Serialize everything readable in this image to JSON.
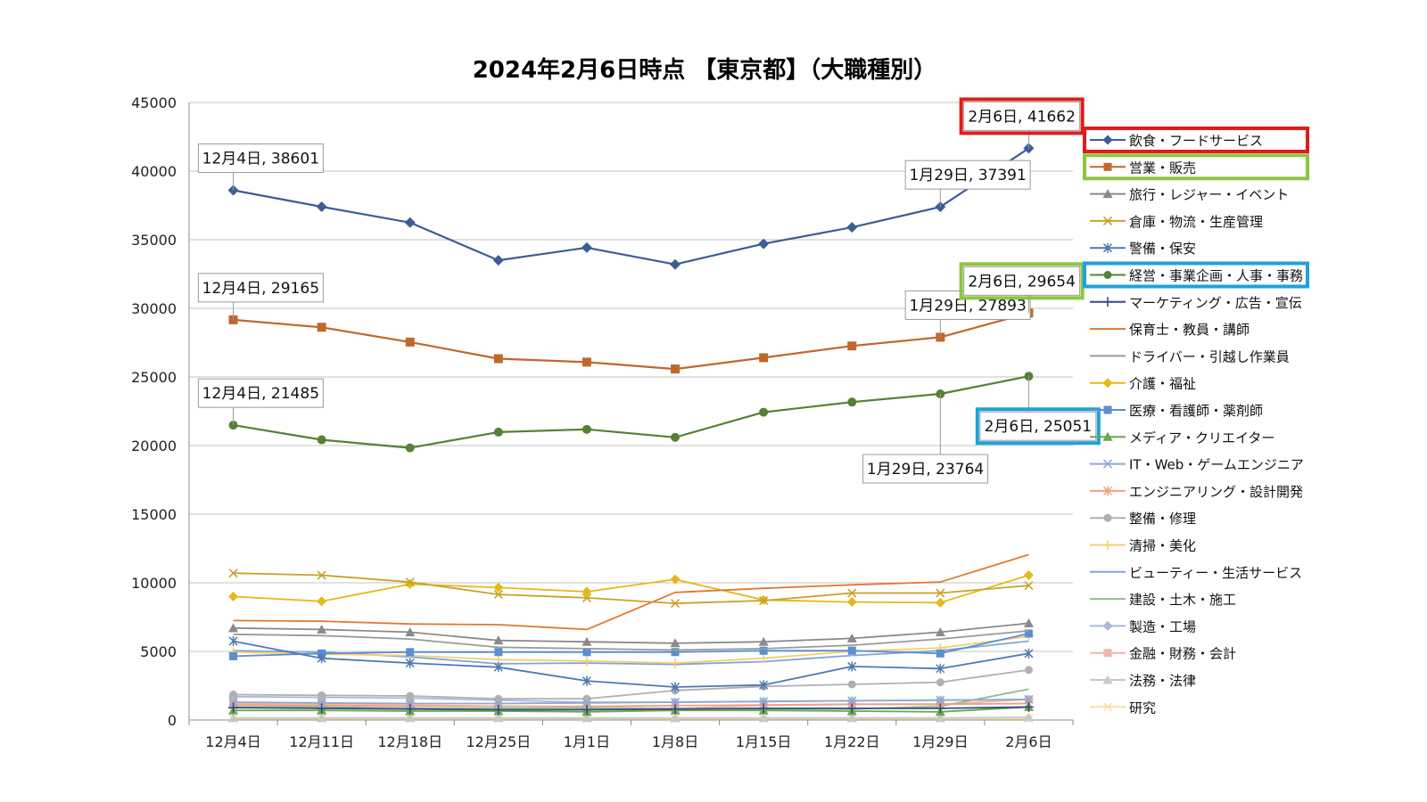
{
  "chart_data": {
    "type": "line",
    "title": "2024年2月6日時点 【東京都】（大職種別）",
    "xlabel": "",
    "ylabel": "",
    "ylim": [
      0,
      45000
    ],
    "yticks": [
      0,
      5000,
      10000,
      15000,
      20000,
      25000,
      30000,
      35000,
      40000,
      45000
    ],
    "grid": "horizontal",
    "legend_position": "right",
    "categories": [
      "12月4日",
      "12月11日",
      "12月18日",
      "12月25日",
      "1月1日",
      "1月8日",
      "1月15日",
      "1月22日",
      "1月29日",
      "2月6日"
    ],
    "series": [
      {
        "name": "飲食・フードサービス",
        "color": "#3c5d96",
        "marker": "diamond",
        "values": [
          38601,
          37400,
          36250,
          33500,
          34420,
          33200,
          34700,
          35900,
          37391,
          41662
        ]
      },
      {
        "name": "営業・販売",
        "color": "#c0672d",
        "marker": "square",
        "values": [
          29165,
          28620,
          27540,
          26330,
          26080,
          25580,
          26400,
          27260,
          27893,
          29654
        ]
      },
      {
        "name": "旅行・レジャー・イベント",
        "color": "#8a8a8a",
        "marker": "triangle",
        "values": [
          6700,
          6600,
          6400,
          5800,
          5700,
          5600,
          5700,
          5950,
          6400,
          7050
        ]
      },
      {
        "name": "倉庫・物流・生産管理",
        "color": "#c9a227",
        "marker": "x",
        "values": [
          10700,
          10550,
          10050,
          9150,
          8900,
          8500,
          8700,
          9250,
          9250,
          9800
        ]
      },
      {
        "name": "警備・保安",
        "color": "#4d7ab3",
        "marker": "asterisk",
        "values": [
          5750,
          4500,
          4150,
          3850,
          2850,
          2400,
          2550,
          3900,
          3750,
          4850
        ]
      },
      {
        "name": "経営・事業企画・人事・事務",
        "color": "#548235",
        "marker": "circle",
        "values": [
          21485,
          20420,
          19830,
          20980,
          21180,
          20600,
          22430,
          23170,
          23764,
          25051
        ]
      },
      {
        "name": "マーケティング・広告・宣伝",
        "color": "#2e4f8a",
        "marker": "plus",
        "values": [
          900,
          850,
          800,
          750,
          750,
          800,
          850,
          850,
          850,
          950
        ]
      },
      {
        "name": "保育士・教員・講師",
        "color": "#e0792f",
        "marker": "dash",
        "values": [
          7250,
          7200,
          7000,
          6950,
          6600,
          9300,
          9600,
          9850,
          10050,
          12050
        ]
      },
      {
        "name": "ドライバー・引越し作業員",
        "color": "#9a9a9a",
        "marker": "dash",
        "values": [
          6250,
          6150,
          5900,
          5300,
          5200,
          5100,
          5200,
          5450,
          5900,
          6500
        ]
      },
      {
        "name": "介護・福祉",
        "color": "#e6b818",
        "marker": "diamond",
        "values": [
          9000,
          8650,
          9900,
          9650,
          9350,
          10250,
          8750,
          8600,
          8550,
          10550
        ]
      },
      {
        "name": "医療・看護師・薬剤師",
        "color": "#5b8fcf",
        "marker": "square",
        "values": [
          4650,
          4850,
          4950,
          4950,
          4950,
          4950,
          5050,
          5050,
          4850,
          6300
        ]
      },
      {
        "name": "メディア・クリエイター",
        "color": "#6aa84f",
        "marker": "triangle",
        "values": [
          700,
          700,
          650,
          650,
          600,
          700,
          700,
          650,
          600,
          950
        ]
      },
      {
        "name": "IT・Web・ゲームエンジニア",
        "color": "#8fa7d6",
        "marker": "x",
        "values": [
          1300,
          1250,
          1200,
          1200,
          1250,
          1300,
          1350,
          1400,
          1450,
          1500
        ]
      },
      {
        "name": "エンジニアリング・設計開発",
        "color": "#f0a080",
        "marker": "asterisk",
        "values": [
          1100,
          1050,
          1000,
          1000,
          1000,
          1050,
          1100,
          1150,
          1150,
          1200
        ]
      },
      {
        "name": "整備・修理",
        "color": "#b0b0b0",
        "marker": "circle",
        "values": [
          1850,
          1800,
          1750,
          1550,
          1550,
          2150,
          2450,
          2600,
          2750,
          3650
        ]
      },
      {
        "name": "清掃・美化",
        "color": "#f5cf6b",
        "marker": "plus",
        "values": [
          4950,
          4800,
          4700,
          4400,
          4300,
          4150,
          4500,
          5000,
          5250,
          6100
        ]
      },
      {
        "name": "ビューティー・生活サービス",
        "color": "#7ea6d8",
        "marker": "dash",
        "values": [
          5050,
          4950,
          4600,
          4100,
          4150,
          4050,
          4250,
          4700,
          5050,
          5750
        ]
      },
      {
        "name": "建設・土木・施工",
        "color": "#8cc084",
        "marker": "dash",
        "values": [
          950,
          950,
          850,
          850,
          850,
          800,
          800,
          800,
          1000,
          2250
        ]
      },
      {
        "name": "製造・工場",
        "color": "#a8b8e0",
        "marker": "diamond",
        "values": [
          1700,
          1650,
          1600,
          1450,
          1300,
          1300,
          1350,
          1400,
          1450,
          1500
        ]
      },
      {
        "name": "金融・財務・会計",
        "color": "#f4b6a6",
        "marker": "square",
        "values": [
          1200,
          1150,
          1100,
          1000,
          950,
          850,
          1050,
          1150,
          1150,
          1500
        ]
      },
      {
        "name": "法務・法律",
        "color": "#c8c8c8",
        "marker": "triangle",
        "values": [
          150,
          150,
          150,
          150,
          150,
          150,
          150,
          150,
          150,
          200
        ]
      },
      {
        "name": "研究",
        "color": "#f7dfa0",
        "marker": "x",
        "values": [
          100,
          100,
          100,
          100,
          100,
          100,
          100,
          100,
          100,
          100
        ]
      }
    ],
    "annotations": [
      {
        "text": "12月4日, 38601",
        "series": 0,
        "index": 0,
        "anchor": "above-left"
      },
      {
        "text": "1月29日, 37391",
        "series": 0,
        "index": 8,
        "anchor": "above-left"
      },
      {
        "text": "2月6日, 41662",
        "series": 0,
        "index": 9,
        "anchor": "above",
        "highlight": "#e01b1b"
      },
      {
        "text": "12月4日, 29165",
        "series": 1,
        "index": 0,
        "anchor": "above-left"
      },
      {
        "text": "1月29日, 27893",
        "series": 1,
        "index": 8,
        "anchor": "above-left"
      },
      {
        "text": "2月6日, 29654",
        "series": 1,
        "index": 9,
        "anchor": "above",
        "highlight": "#8dc63f"
      },
      {
        "text": "12月4日, 21485",
        "series": 5,
        "index": 0,
        "anchor": "above-left"
      },
      {
        "text": "1月29日, 23764",
        "series": 5,
        "index": 8,
        "anchor": "below-left"
      },
      {
        "text": "2月6日, 25051",
        "series": 5,
        "index": 9,
        "anchor": "below",
        "highlight": "#1fa2d9"
      }
    ],
    "legend_highlights": [
      {
        "series": 0,
        "color": "#e01b1b"
      },
      {
        "series": 1,
        "color": "#8dc63f"
      },
      {
        "series": 5,
        "color": "#1fa2d9"
      }
    ]
  }
}
